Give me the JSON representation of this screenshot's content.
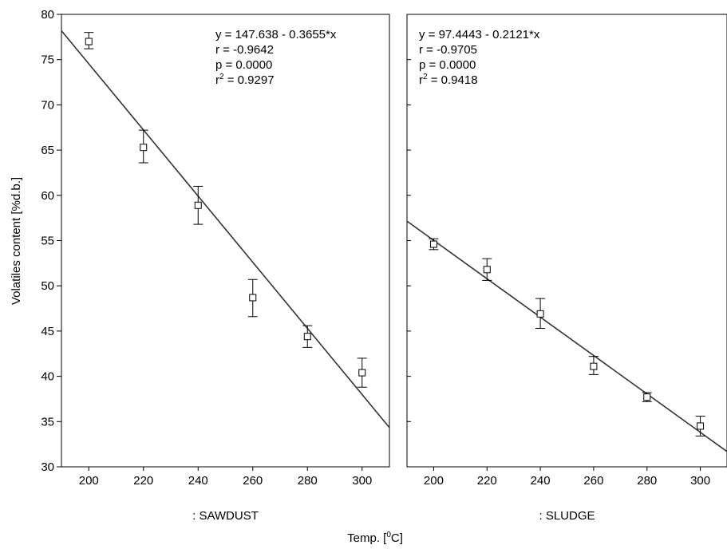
{
  "chart_data": {
    "type": "scatter",
    "ylabel": "Volatiles content [%d.b.]",
    "xlabel_main": "Temp. [",
    "xlabel_sup": "0",
    "xlabel_tail": "C]",
    "ylim": [
      30,
      80
    ],
    "xlim": [
      190,
      310
    ],
    "yticks": [
      30,
      35,
      40,
      45,
      50,
      55,
      60,
      65,
      70,
      75,
      80
    ],
    "xticks": [
      200,
      220,
      240,
      260,
      280,
      300
    ],
    "panels": [
      {
        "name": ": SAWDUST",
        "x": [
          200,
          220,
          240,
          260,
          280,
          300
        ],
        "y": [
          77.0,
          65.3,
          58.9,
          48.7,
          44.4,
          40.4
        ],
        "err_low": [
          76.2,
          63.6,
          56.8,
          46.6,
          43.2,
          38.8
        ],
        "err_high": [
          78.0,
          67.2,
          61.0,
          50.7,
          45.6,
          42.0
        ],
        "fit": {
          "intercept": 147.638,
          "slope": -0.3655
        },
        "annot": {
          "eq": "y = 147.638 - 0.3655*x",
          "r": "r = -0.9642",
          "p": "p = 0.0000",
          "r2_pre": "r",
          "r2_sup": "2",
          "r2_post": " = 0.9297"
        }
      },
      {
        "name": ": SLUDGE",
        "x": [
          200,
          220,
          240,
          260,
          280,
          300
        ],
        "y": [
          54.6,
          51.8,
          46.9,
          41.1,
          37.7,
          34.5
        ],
        "err_low": [
          54.0,
          50.6,
          45.3,
          40.2,
          37.2,
          33.4
        ],
        "err_high": [
          55.2,
          53.0,
          48.6,
          42.2,
          38.2,
          35.6
        ],
        "fit": {
          "intercept": 97.4443,
          "slope": -0.2121
        },
        "annot": {
          "eq": "y = 97.4443 - 0.2121*x",
          "r": "r = -0.9705",
          "p": "p = 0.0000",
          "r2_pre": "r",
          "r2_sup": "2",
          "r2_post": " = 0.9418"
        }
      }
    ]
  }
}
